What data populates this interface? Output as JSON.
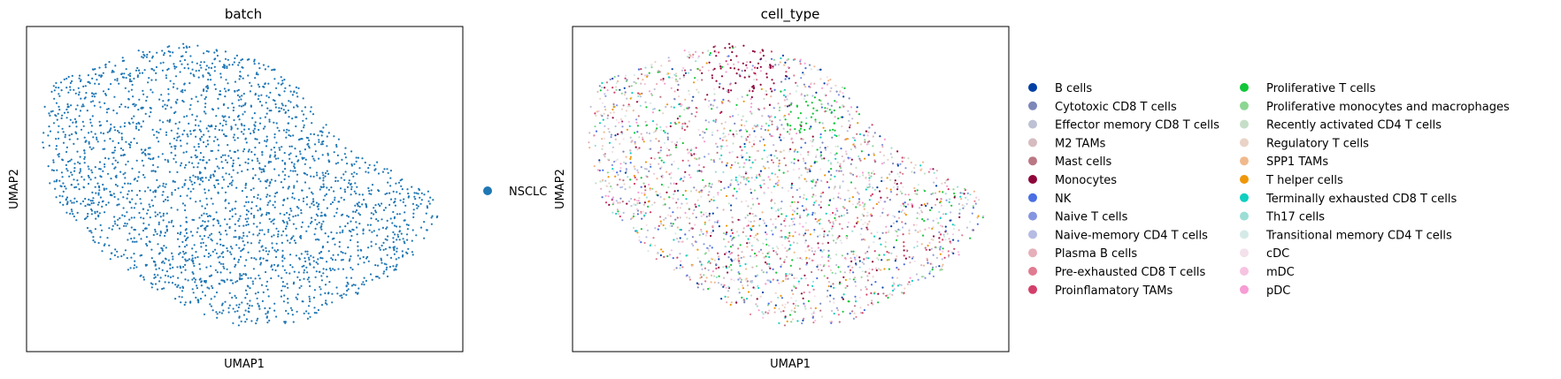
{
  "chart_data": [
    {
      "type": "scatter",
      "title": "batch",
      "xlabel": "UMAP1",
      "ylabel": "UMAP2",
      "grid": false,
      "ticks": false,
      "legend": "right",
      "series": [
        {
          "name": "NSCLC",
          "color": "#1f77b4"
        }
      ]
    },
    {
      "type": "scatter",
      "title": "cell_type",
      "xlabel": "UMAP1",
      "ylabel": "UMAP2",
      "grid": false,
      "ticks": false,
      "legend": "right",
      "series": [
        {
          "name": "B cells",
          "color": "#023fa5"
        },
        {
          "name": "Cytotoxic CD8 T cells",
          "color": "#7d87b9"
        },
        {
          "name": "Effector memory CD8 T cells",
          "color": "#bec1d4"
        },
        {
          "name": "M2 TAMs",
          "color": "#d6bcc0"
        },
        {
          "name": "Mast cells",
          "color": "#bb7784"
        },
        {
          "name": "Monocytes",
          "color": "#8e063b"
        },
        {
          "name": "NK",
          "color": "#4a6fe3"
        },
        {
          "name": "Naive T cells",
          "color": "#8595e1"
        },
        {
          "name": "Naive-memory CD4 T cells",
          "color": "#b5bbe3"
        },
        {
          "name": "Plasma B cells",
          "color": "#e6afb9"
        },
        {
          "name": "Pre-exhausted CD8 T cells",
          "color": "#e07b91"
        },
        {
          "name": "Proinflamatory TAMs",
          "color": "#d33f6a"
        },
        {
          "name": "Proliferative T cells",
          "color": "#11c638"
        },
        {
          "name": "Proliferative monocytes and macrophages",
          "color": "#8dd593"
        },
        {
          "name": "Recently activated CD4 T cells",
          "color": "#c6dec7"
        },
        {
          "name": "Regulatory T cells",
          "color": "#ead3c6"
        },
        {
          "name": "SPP1 TAMs",
          "color": "#f0b98d"
        },
        {
          "name": "T helper cells",
          "color": "#ef9708"
        },
        {
          "name": "Terminally exhausted CD8 T cells",
          "color": "#0fcfc0"
        },
        {
          "name": "Th17 cells",
          "color": "#9cded6"
        },
        {
          "name": "Transitional memory CD4 T cells",
          "color": "#d5eae7"
        },
        {
          "name": "cDC",
          "color": "#f3e1eb"
        },
        {
          "name": "mDC",
          "color": "#f6c4e1"
        },
        {
          "name": "pDC",
          "color": "#f79cd4"
        }
      ]
    }
  ]
}
